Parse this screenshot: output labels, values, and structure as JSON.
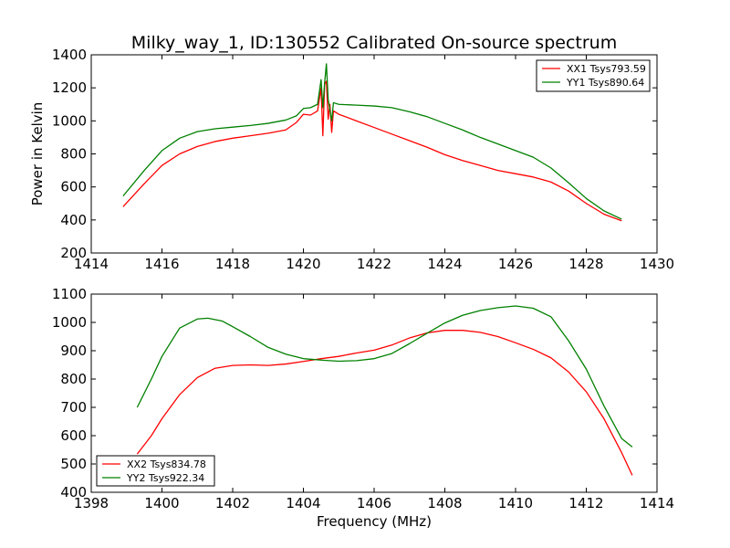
{
  "chart_data": [
    {
      "type": "line",
      "title": "Milky_way_1, ID:130552 Calibrated On-source spectrum",
      "xlabel": "",
      "ylabel": "Power in Kelvin",
      "xlim": [
        1414,
        1430
      ],
      "ylim": [
        200,
        1400
      ],
      "xticks": [
        1414,
        1416,
        1418,
        1420,
        1422,
        1424,
        1426,
        1428,
        1430
      ],
      "yticks": [
        200,
        400,
        600,
        800,
        1000,
        1200,
        1400
      ],
      "legend": "top-right",
      "grid": false,
      "series": [
        {
          "name": "XX1 Tsys793.59",
          "color": "#ff0000",
          "points": [
            [
              1414.9,
              480
            ],
            [
              1415.5,
              620
            ],
            [
              1416,
              730
            ],
            [
              1416.5,
              800
            ],
            [
              1417,
              845
            ],
            [
              1417.5,
              875
            ],
            [
              1418,
              895
            ],
            [
              1418.5,
              910
            ],
            [
              1419,
              925
            ],
            [
              1419.5,
              945
            ],
            [
              1419.8,
              990
            ],
            [
              1420,
              1040
            ],
            [
              1420.2,
              1035
            ],
            [
              1420.4,
              1060
            ],
            [
              1420.5,
              1200
            ],
            [
              1420.55,
              910
            ],
            [
              1420.6,
              1220
            ],
            [
              1420.65,
              1240
            ],
            [
              1420.7,
              1010
            ],
            [
              1420.75,
              1100
            ],
            [
              1420.8,
              930
            ],
            [
              1420.85,
              1060
            ],
            [
              1421,
              1040
            ],
            [
              1421.5,
              1000
            ],
            [
              1422,
              960
            ],
            [
              1422.5,
              920
            ],
            [
              1423,
              880
            ],
            [
              1423.5,
              840
            ],
            [
              1424,
              795
            ],
            [
              1424.5,
              760
            ],
            [
              1425,
              730
            ],
            [
              1425.5,
              700
            ],
            [
              1426,
              680
            ],
            [
              1426.5,
              660
            ],
            [
              1427,
              630
            ],
            [
              1427.5,
              575
            ],
            [
              1428,
              500
            ],
            [
              1428.5,
              435
            ],
            [
              1429,
              395
            ]
          ]
        },
        {
          "name": "YY1 Tsys890.64",
          "color": "#008000",
          "points": [
            [
              1414.9,
              545
            ],
            [
              1415.5,
              700
            ],
            [
              1416,
              820
            ],
            [
              1416.5,
              895
            ],
            [
              1417,
              935
            ],
            [
              1417.5,
              952
            ],
            [
              1418,
              962
            ],
            [
              1418.5,
              972
            ],
            [
              1419,
              985
            ],
            [
              1419.5,
              1005
            ],
            [
              1419.8,
              1030
            ],
            [
              1420,
              1075
            ],
            [
              1420.2,
              1080
            ],
            [
              1420.4,
              1100
            ],
            [
              1420.5,
              1250
            ],
            [
              1420.55,
              1080
            ],
            [
              1420.6,
              1230
            ],
            [
              1420.65,
              1345
            ],
            [
              1420.7,
              1130
            ],
            [
              1420.8,
              1000
            ],
            [
              1420.85,
              1110
            ],
            [
              1421,
              1100
            ],
            [
              1421.5,
              1095
            ],
            [
              1422,
              1090
            ],
            [
              1422.5,
              1080
            ],
            [
              1423,
              1055
            ],
            [
              1423.5,
              1025
            ],
            [
              1424,
              985
            ],
            [
              1424.5,
              945
            ],
            [
              1425,
              900
            ],
            [
              1425.5,
              860
            ],
            [
              1426,
              820
            ],
            [
              1426.5,
              780
            ],
            [
              1427,
              715
            ],
            [
              1427.5,
              625
            ],
            [
              1428,
              530
            ],
            [
              1428.5,
              455
            ],
            [
              1429,
              405
            ]
          ]
        }
      ]
    },
    {
      "type": "line",
      "title": "",
      "xlabel": "Frequency (MHz)",
      "ylabel": "",
      "xlim": [
        1398,
        1414
      ],
      "ylim": [
        400,
        1100
      ],
      "xticks": [
        1398,
        1400,
        1402,
        1404,
        1406,
        1408,
        1410,
        1412,
        1414
      ],
      "yticks": [
        400,
        500,
        600,
        700,
        800,
        900,
        1000,
        1100
      ],
      "legend": "bottom-left",
      "grid": false,
      "series": [
        {
          "name": "XX2 Tsys834.78",
          "color": "#ff0000",
          "points": [
            [
              1399.3,
              535
            ],
            [
              1399.7,
              600
            ],
            [
              1400,
              660
            ],
            [
              1400.5,
              745
            ],
            [
              1401,
              805
            ],
            [
              1401.5,
              838
            ],
            [
              1402,
              848
            ],
            [
              1402.5,
              850
            ],
            [
              1403,
              848
            ],
            [
              1403.5,
              853
            ],
            [
              1404,
              862
            ],
            [
              1404.5,
              872
            ],
            [
              1405,
              880
            ],
            [
              1405.5,
              892
            ],
            [
              1406,
              902
            ],
            [
              1406.5,
              920
            ],
            [
              1407,
              945
            ],
            [
              1407.5,
              963
            ],
            [
              1408,
              972
            ],
            [
              1408.5,
              972
            ],
            [
              1409,
              965
            ],
            [
              1409.5,
              950
            ],
            [
              1410,
              928
            ],
            [
              1410.5,
              905
            ],
            [
              1411,
              875
            ],
            [
              1411.5,
              825
            ],
            [
              1412,
              755
            ],
            [
              1412.5,
              660
            ],
            [
              1413,
              540
            ],
            [
              1413.3,
              460
            ]
          ]
        },
        {
          "name": "YY2 Tsys922.34",
          "color": "#008000",
          "points": [
            [
              1399.3,
              700
            ],
            [
              1399.7,
              800
            ],
            [
              1400,
              880
            ],
            [
              1400.5,
              980
            ],
            [
              1401,
              1012
            ],
            [
              1401.3,
              1015
            ],
            [
              1401.7,
              1005
            ],
            [
              1402,
              985
            ],
            [
              1402.5,
              950
            ],
            [
              1403,
              912
            ],
            [
              1403.5,
              888
            ],
            [
              1404,
              872
            ],
            [
              1404.5,
              867
            ],
            [
              1405,
              863
            ],
            [
              1405.5,
              865
            ],
            [
              1406,
              872
            ],
            [
              1406.5,
              890
            ],
            [
              1407,
              925
            ],
            [
              1407.5,
              962
            ],
            [
              1408,
              998
            ],
            [
              1408.5,
              1025
            ],
            [
              1409,
              1042
            ],
            [
              1409.5,
              1052
            ],
            [
              1410,
              1058
            ],
            [
              1410.5,
              1050
            ],
            [
              1411,
              1020
            ],
            [
              1411.5,
              935
            ],
            [
              1412,
              835
            ],
            [
              1412.5,
              705
            ],
            [
              1413,
              590
            ],
            [
              1413.3,
              560
            ]
          ]
        }
      ]
    }
  ]
}
